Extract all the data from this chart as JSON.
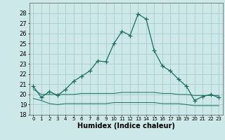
{
  "xlabel": "Humidex (Indice chaleur)",
  "bg_color": "#cce8e8",
  "grid_color": "#aacccc",
  "line_color": "#1a6e60",
  "x_values": [
    0,
    1,
    2,
    3,
    4,
    5,
    6,
    7,
    8,
    9,
    10,
    11,
    12,
    13,
    14,
    15,
    16,
    17,
    18,
    19,
    20,
    21,
    22,
    23
  ],
  "humidex_main": [
    20.8,
    19.7,
    20.3,
    19.9,
    20.5,
    21.3,
    21.8,
    22.3,
    23.3,
    23.2,
    25.0,
    26.2,
    25.8,
    27.9,
    27.4,
    24.3,
    22.8,
    22.3,
    21.5,
    20.8,
    19.4,
    19.8,
    20.0,
    19.7
  ],
  "humidex_min": [
    19.6,
    19.4,
    19.1,
    19.0,
    19.1,
    19.1,
    19.1,
    19.1,
    19.1,
    19.1,
    19.2,
    19.2,
    19.2,
    19.2,
    19.2,
    19.2,
    19.1,
    19.1,
    19.1,
    19.0,
    18.9,
    18.9,
    18.9,
    18.9
  ],
  "humidex_max": [
    20.5,
    20.0,
    20.0,
    20.0,
    20.0,
    20.0,
    20.1,
    20.1,
    20.1,
    20.1,
    20.1,
    20.2,
    20.2,
    20.2,
    20.2,
    20.2,
    20.1,
    20.1,
    20.0,
    20.0,
    19.9,
    19.9,
    19.9,
    19.9
  ],
  "ylim": [
    18,
    29
  ],
  "yticks": [
    18,
    19,
    20,
    21,
    22,
    23,
    24,
    25,
    26,
    27,
    28
  ],
  "xticks": [
    0,
    1,
    2,
    3,
    4,
    5,
    6,
    7,
    8,
    9,
    10,
    11,
    12,
    13,
    14,
    15,
    16,
    17,
    18,
    19,
    20,
    21,
    22,
    23
  ],
  "xlabel_fontsize": 7,
  "tick_fontsize": 6,
  "marker_size": 4,
  "linewidth_main": 0.9,
  "linewidth_envelope": 0.7
}
